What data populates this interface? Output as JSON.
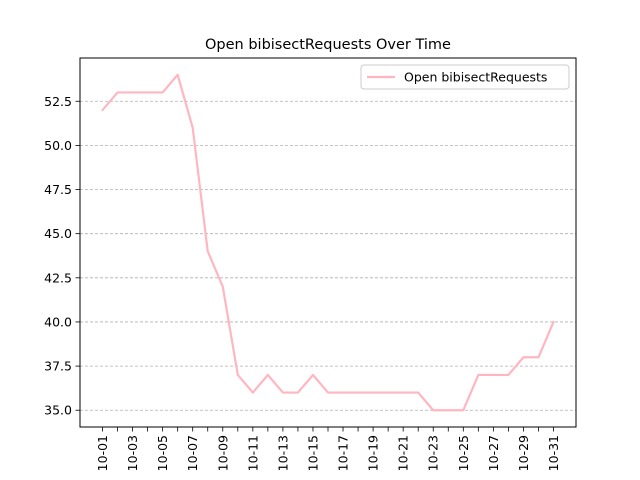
{
  "chart_data": {
    "type": "line",
    "title": "Open bibisectRequests Over Time",
    "xlabel": "",
    "ylabel": "",
    "x": [
      "10-01",
      "10-02",
      "10-03",
      "10-04",
      "10-05",
      "10-06",
      "10-07",
      "10-08",
      "10-09",
      "10-10",
      "10-11",
      "10-12",
      "10-13",
      "10-14",
      "10-15",
      "10-16",
      "10-17",
      "10-18",
      "10-19",
      "10-20",
      "10-21",
      "10-22",
      "10-23",
      "10-24",
      "10-25",
      "10-26",
      "10-27",
      "10-28",
      "10-29",
      "10-30",
      "10-31"
    ],
    "x_tick_labels": [
      "10-01",
      "10-03",
      "10-05",
      "10-07",
      "10-09",
      "10-11",
      "10-13",
      "10-15",
      "10-17",
      "10-19",
      "10-21",
      "10-23",
      "10-25",
      "10-27",
      "10-29",
      "10-31"
    ],
    "series": [
      {
        "name": "Open bibisectRequests",
        "color": "#ffb6c1",
        "values": [
          52,
          53,
          53,
          53,
          53,
          54,
          51,
          44,
          42,
          37,
          36,
          37,
          36,
          36,
          37,
          36,
          36,
          36,
          36,
          36,
          36,
          36,
          35,
          35,
          35,
          37,
          37,
          37,
          38,
          38,
          40
        ]
      }
    ],
    "ylim": [
      34.05,
      54.95
    ],
    "y_ticks": [
      35.0,
      37.5,
      40.0,
      42.5,
      45.0,
      47.5,
      50.0,
      52.5
    ],
    "y_tick_labels": [
      "35.0",
      "37.5",
      "40.0",
      "42.5",
      "45.0",
      "47.5",
      "50.0",
      "52.5"
    ],
    "grid": "y-dashed",
    "legend_position": "top-right"
  }
}
